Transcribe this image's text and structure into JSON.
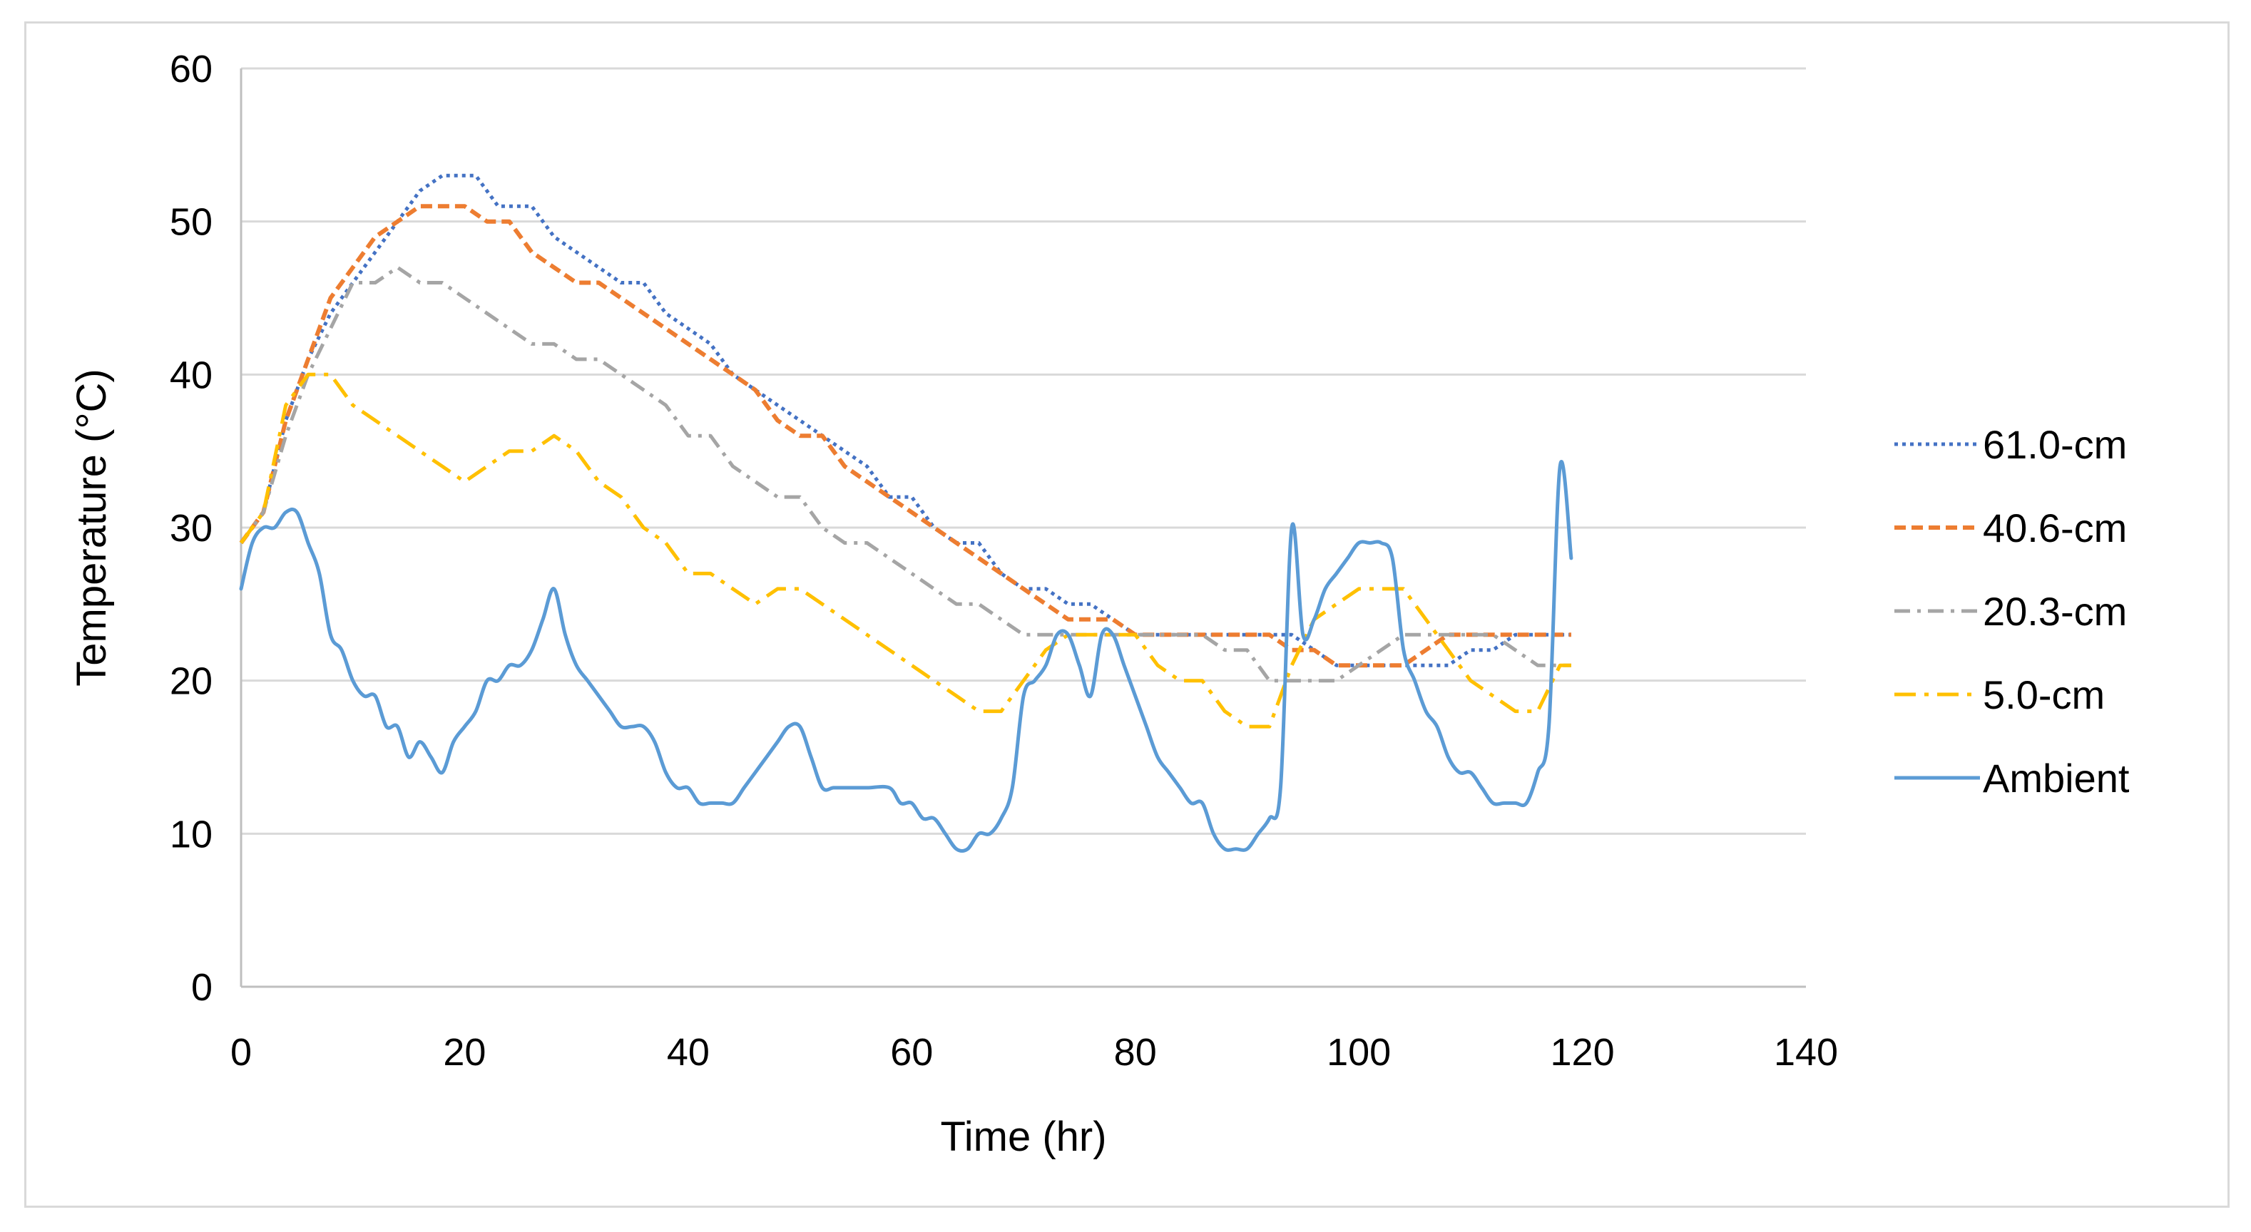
{
  "chart_data": {
    "type": "line",
    "title": "",
    "xlabel": "Time (hr)",
    "ylabel": "Temperature (°C)",
    "xlim": [
      0,
      140
    ],
    "ylim": [
      0,
      60
    ],
    "xticks": [
      "0",
      "20",
      "40",
      "60",
      "80",
      "100",
      "120",
      "140"
    ],
    "yticks": [
      "0",
      "10",
      "20",
      "30",
      "40",
      "50",
      "60"
    ],
    "grid": "horizontal",
    "legend_position": "right",
    "series": [
      {
        "name": "61.0-cm",
        "color": "#4472C4",
        "style": "dotted",
        "points": [
          [
            0,
            29
          ],
          [
            2,
            31
          ],
          [
            4,
            37
          ],
          [
            6,
            41
          ],
          [
            8,
            44
          ],
          [
            10,
            46
          ],
          [
            12,
            48
          ],
          [
            14,
            50
          ],
          [
            16,
            52
          ],
          [
            18,
            53
          ],
          [
            21,
            53
          ],
          [
            23,
            51
          ],
          [
            26,
            51
          ],
          [
            28,
            49
          ],
          [
            30,
            48
          ],
          [
            32,
            47
          ],
          [
            34,
            46
          ],
          [
            36,
            46
          ],
          [
            38,
            44
          ],
          [
            40,
            43
          ],
          [
            42,
            42
          ],
          [
            44,
            40
          ],
          [
            46,
            39
          ],
          [
            48,
            38
          ],
          [
            50,
            37
          ],
          [
            52,
            36
          ],
          [
            54,
            35
          ],
          [
            56,
            34
          ],
          [
            58,
            32
          ],
          [
            60,
            32
          ],
          [
            62,
            30
          ],
          [
            64,
            29
          ],
          [
            66,
            29
          ],
          [
            68,
            27
          ],
          [
            70,
            26
          ],
          [
            72,
            26
          ],
          [
            74,
            25
          ],
          [
            76,
            25
          ],
          [
            78,
            24
          ],
          [
            80,
            23
          ],
          [
            88,
            23
          ],
          [
            94,
            23
          ],
          [
            96,
            22
          ],
          [
            98,
            21
          ],
          [
            100,
            21
          ],
          [
            104,
            21
          ],
          [
            108,
            21
          ],
          [
            110,
            22
          ],
          [
            112,
            22
          ],
          [
            114,
            23
          ],
          [
            119,
            23
          ]
        ]
      },
      {
        "name": "40.6-cm",
        "color": "#ED7D31",
        "style": "dashed",
        "points": [
          [
            0,
            29
          ],
          [
            2,
            31
          ],
          [
            4,
            37
          ],
          [
            6,
            41
          ],
          [
            8,
            45
          ],
          [
            10,
            47
          ],
          [
            12,
            49
          ],
          [
            14,
            50
          ],
          [
            16,
            51
          ],
          [
            20,
            51
          ],
          [
            22,
            50
          ],
          [
            24,
            50
          ],
          [
            26,
            48
          ],
          [
            28,
            47
          ],
          [
            30,
            46
          ],
          [
            32,
            46
          ],
          [
            34,
            45
          ],
          [
            36,
            44
          ],
          [
            38,
            43
          ],
          [
            40,
            42
          ],
          [
            42,
            41
          ],
          [
            44,
            40
          ],
          [
            46,
            39
          ],
          [
            48,
            37
          ],
          [
            50,
            36
          ],
          [
            52,
            36
          ],
          [
            54,
            34
          ],
          [
            56,
            33
          ],
          [
            58,
            32
          ],
          [
            60,
            31
          ],
          [
            62,
            30
          ],
          [
            64,
            29
          ],
          [
            66,
            28
          ],
          [
            68,
            27
          ],
          [
            70,
            26
          ],
          [
            72,
            25
          ],
          [
            74,
            24
          ],
          [
            76,
            24
          ],
          [
            78,
            24
          ],
          [
            80,
            23
          ],
          [
            90,
            23
          ],
          [
            92,
            23
          ],
          [
            94,
            22
          ],
          [
            96,
            22
          ],
          [
            98,
            21
          ],
          [
            100,
            21
          ],
          [
            104,
            21
          ],
          [
            106,
            22
          ],
          [
            108,
            23
          ],
          [
            119,
            23
          ]
        ]
      },
      {
        "name": "20.3-cm",
        "color": "#A5A5A5",
        "style": "dashdot",
        "points": [
          [
            0,
            29
          ],
          [
            2,
            31
          ],
          [
            4,
            36
          ],
          [
            6,
            40
          ],
          [
            8,
            43
          ],
          [
            10,
            46
          ],
          [
            12,
            46
          ],
          [
            14,
            47
          ],
          [
            16,
            46
          ],
          [
            18,
            46
          ],
          [
            20,
            45
          ],
          [
            22,
            44
          ],
          [
            24,
            43
          ],
          [
            26,
            42
          ],
          [
            28,
            42
          ],
          [
            30,
            41
          ],
          [
            32,
            41
          ],
          [
            34,
            40
          ],
          [
            36,
            39
          ],
          [
            38,
            38
          ],
          [
            40,
            36
          ],
          [
            42,
            36
          ],
          [
            44,
            34
          ],
          [
            46,
            33
          ],
          [
            48,
            32
          ],
          [
            50,
            32
          ],
          [
            52,
            30
          ],
          [
            54,
            29
          ],
          [
            56,
            29
          ],
          [
            58,
            28
          ],
          [
            60,
            27
          ],
          [
            62,
            26
          ],
          [
            64,
            25
          ],
          [
            66,
            25
          ],
          [
            68,
            24
          ],
          [
            70,
            23
          ],
          [
            80,
            23
          ],
          [
            86,
            23
          ],
          [
            88,
            22
          ],
          [
            90,
            22
          ],
          [
            92,
            20
          ],
          [
            94,
            20
          ],
          [
            96,
            20
          ],
          [
            98,
            20
          ],
          [
            100,
            21
          ],
          [
            102,
            22
          ],
          [
            104,
            23
          ],
          [
            106,
            23
          ],
          [
            110,
            23
          ],
          [
            112,
            23
          ],
          [
            114,
            22
          ],
          [
            116,
            21
          ],
          [
            119,
            21
          ]
        ]
      },
      {
        "name": "5.0-cm",
        "color": "#FFC000",
        "style": "longdashdot",
        "points": [
          [
            0,
            29
          ],
          [
            2,
            31
          ],
          [
            4,
            38
          ],
          [
            6,
            40
          ],
          [
            8,
            40
          ],
          [
            10,
            38
          ],
          [
            12,
            37
          ],
          [
            14,
            36
          ],
          [
            16,
            35
          ],
          [
            18,
            34
          ],
          [
            20,
            33
          ],
          [
            22,
            34
          ],
          [
            24,
            35
          ],
          [
            26,
            35
          ],
          [
            28,
            36
          ],
          [
            30,
            35
          ],
          [
            32,
            33
          ],
          [
            34,
            32
          ],
          [
            36,
            30
          ],
          [
            38,
            29
          ],
          [
            40,
            27
          ],
          [
            42,
            27
          ],
          [
            44,
            26
          ],
          [
            46,
            25
          ],
          [
            48,
            26
          ],
          [
            50,
            26
          ],
          [
            52,
            25
          ],
          [
            54,
            24
          ],
          [
            56,
            23
          ],
          [
            58,
            22
          ],
          [
            60,
            21
          ],
          [
            62,
            20
          ],
          [
            64,
            19
          ],
          [
            66,
            18
          ],
          [
            68,
            18
          ],
          [
            70,
            20
          ],
          [
            72,
            22
          ],
          [
            74,
            23
          ],
          [
            76,
            23
          ],
          [
            78,
            23
          ],
          [
            80,
            23
          ],
          [
            82,
            21
          ],
          [
            84,
            20
          ],
          [
            86,
            20
          ],
          [
            88,
            18
          ],
          [
            90,
            17
          ],
          [
            92,
            17
          ],
          [
            94,
            21
          ],
          [
            96,
            24
          ],
          [
            98,
            25
          ],
          [
            100,
            26
          ],
          [
            104,
            26
          ],
          [
            106,
            24
          ],
          [
            108,
            22
          ],
          [
            110,
            20
          ],
          [
            112,
            19
          ],
          [
            114,
            18
          ],
          [
            116,
            18
          ],
          [
            118,
            21
          ],
          [
            119,
            21
          ]
        ]
      },
      {
        "name": "Ambient",
        "color": "#5B9BD5",
        "style": "solid",
        "points": [
          [
            0,
            26
          ],
          [
            1,
            29
          ],
          [
            2,
            30
          ],
          [
            3,
            30
          ],
          [
            4,
            31
          ],
          [
            5,
            31
          ],
          [
            6,
            29
          ],
          [
            7,
            27
          ],
          [
            8,
            23
          ],
          [
            9,
            22
          ],
          [
            10,
            20
          ],
          [
            11,
            19
          ],
          [
            12,
            19
          ],
          [
            13,
            17
          ],
          [
            14,
            17
          ],
          [
            15,
            15
          ],
          [
            16,
            16
          ],
          [
            17,
            15
          ],
          [
            18,
            14
          ],
          [
            19,
            16
          ],
          [
            20,
            17
          ],
          [
            21,
            18
          ],
          [
            22,
            20
          ],
          [
            23,
            20
          ],
          [
            24,
            21
          ],
          [
            25,
            21
          ],
          [
            26,
            22
          ],
          [
            27,
            24
          ],
          [
            28,
            26
          ],
          [
            29,
            23
          ],
          [
            30,
            21
          ],
          [
            31,
            20
          ],
          [
            32,
            19
          ],
          [
            33,
            18
          ],
          [
            34,
            17
          ],
          [
            35,
            17
          ],
          [
            36,
            17
          ],
          [
            37,
            16
          ],
          [
            38,
            14
          ],
          [
            39,
            13
          ],
          [
            40,
            13
          ],
          [
            41,
            12
          ],
          [
            42,
            12
          ],
          [
            43,
            12
          ],
          [
            44,
            12
          ],
          [
            45,
            13
          ],
          [
            46,
            14
          ],
          [
            47,
            15
          ],
          [
            48,
            16
          ],
          [
            49,
            17
          ],
          [
            50,
            17
          ],
          [
            51,
            15
          ],
          [
            52,
            13
          ],
          [
            53,
            13
          ],
          [
            54,
            13
          ],
          [
            56,
            13
          ],
          [
            58,
            13
          ],
          [
            59,
            12
          ],
          [
            60,
            12
          ],
          [
            61,
            11
          ],
          [
            62,
            11
          ],
          [
            63,
            10
          ],
          [
            64,
            9
          ],
          [
            65,
            9
          ],
          [
            66,
            10
          ],
          [
            67,
            10
          ],
          [
            68,
            11
          ],
          [
            69,
            13
          ],
          [
            70,
            19
          ],
          [
            71,
            20
          ],
          [
            72,
            21
          ],
          [
            73,
            23
          ],
          [
            74,
            23
          ],
          [
            75,
            21
          ],
          [
            76,
            19
          ],
          [
            77,
            23
          ],
          [
            78,
            23
          ],
          [
            79,
            21
          ],
          [
            80,
            19
          ],
          [
            81,
            17
          ],
          [
            82,
            15
          ],
          [
            83,
            14
          ],
          [
            84,
            13
          ],
          [
            85,
            12
          ],
          [
            86,
            12
          ],
          [
            87,
            10
          ],
          [
            88,
            9
          ],
          [
            89,
            9
          ],
          [
            90,
            9
          ],
          [
            91,
            10
          ],
          [
            92,
            11
          ],
          [
            93,
            13
          ],
          [
            94,
            30
          ],
          [
            95,
            23
          ],
          [
            96,
            24
          ],
          [
            97,
            26
          ],
          [
            98,
            27
          ],
          [
            99,
            28
          ],
          [
            100,
            29
          ],
          [
            101,
            29
          ],
          [
            102,
            29
          ],
          [
            103,
            28
          ],
          [
            104,
            22
          ],
          [
            105,
            20
          ],
          [
            106,
            18
          ],
          [
            107,
            17
          ],
          [
            108,
            15
          ],
          [
            109,
            14
          ],
          [
            110,
            14
          ],
          [
            111,
            13
          ],
          [
            112,
            12
          ],
          [
            113,
            12
          ],
          [
            114,
            12
          ],
          [
            115,
            12
          ],
          [
            116,
            14
          ],
          [
            117,
            17
          ],
          [
            118,
            34
          ],
          [
            119,
            28
          ]
        ]
      }
    ]
  }
}
